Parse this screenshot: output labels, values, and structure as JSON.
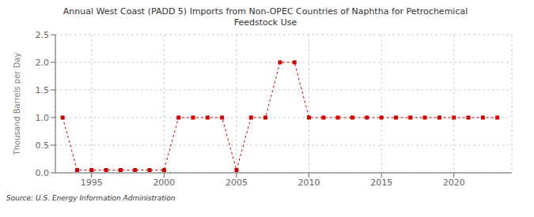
{
  "chart_data": {
    "type": "line",
    "title": "Annual West Coast (PADD 5) Imports from Non-OPEC Countries of Naphtha for Petrochemical\nFeedstock Use",
    "ylabel": "Thousand Barrels per Day",
    "annotations": [
      "Source: U.S. Energy Information Administration"
    ],
    "x": [
      1993,
      1994,
      1995,
      1996,
      1997,
      1998,
      1999,
      2000,
      2001,
      2002,
      2003,
      2004,
      2005,
      2006,
      2007,
      2008,
      2009,
      2010,
      2011,
      2012,
      2013,
      2014,
      2015,
      2016,
      2017,
      2018,
      2019,
      2020,
      2021,
      2022,
      2023
    ],
    "values": [
      1.0,
      0.05,
      0.05,
      0.05,
      0.05,
      0.05,
      0.05,
      0.05,
      1.0,
      1.0,
      1.0,
      1.0,
      0.05,
      1.0,
      1.0,
      2.0,
      2.0,
      1.0,
      1.0,
      1.0,
      1.0,
      1.0,
      1.0,
      1.0,
      1.0,
      1.0,
      1.0,
      1.0,
      1.0,
      1.0,
      1.0
    ],
    "color": "#cc0000",
    "marker": "square",
    "line_style": "dashed",
    "xlim": [
      1992.5,
      2024
    ],
    "xticks": [
      1995,
      2000,
      2005,
      2010,
      2015,
      2020
    ],
    "ylim": [
      0,
      2.5
    ],
    "yticks": [
      {
        "value": 0,
        "label": "0.0"
      },
      0.5,
      {
        "value": 1,
        "label": "1.0"
      },
      1.5,
      {
        "value": 2,
        "label": "2.0"
      },
      2.5
    ],
    "grid": true
  }
}
